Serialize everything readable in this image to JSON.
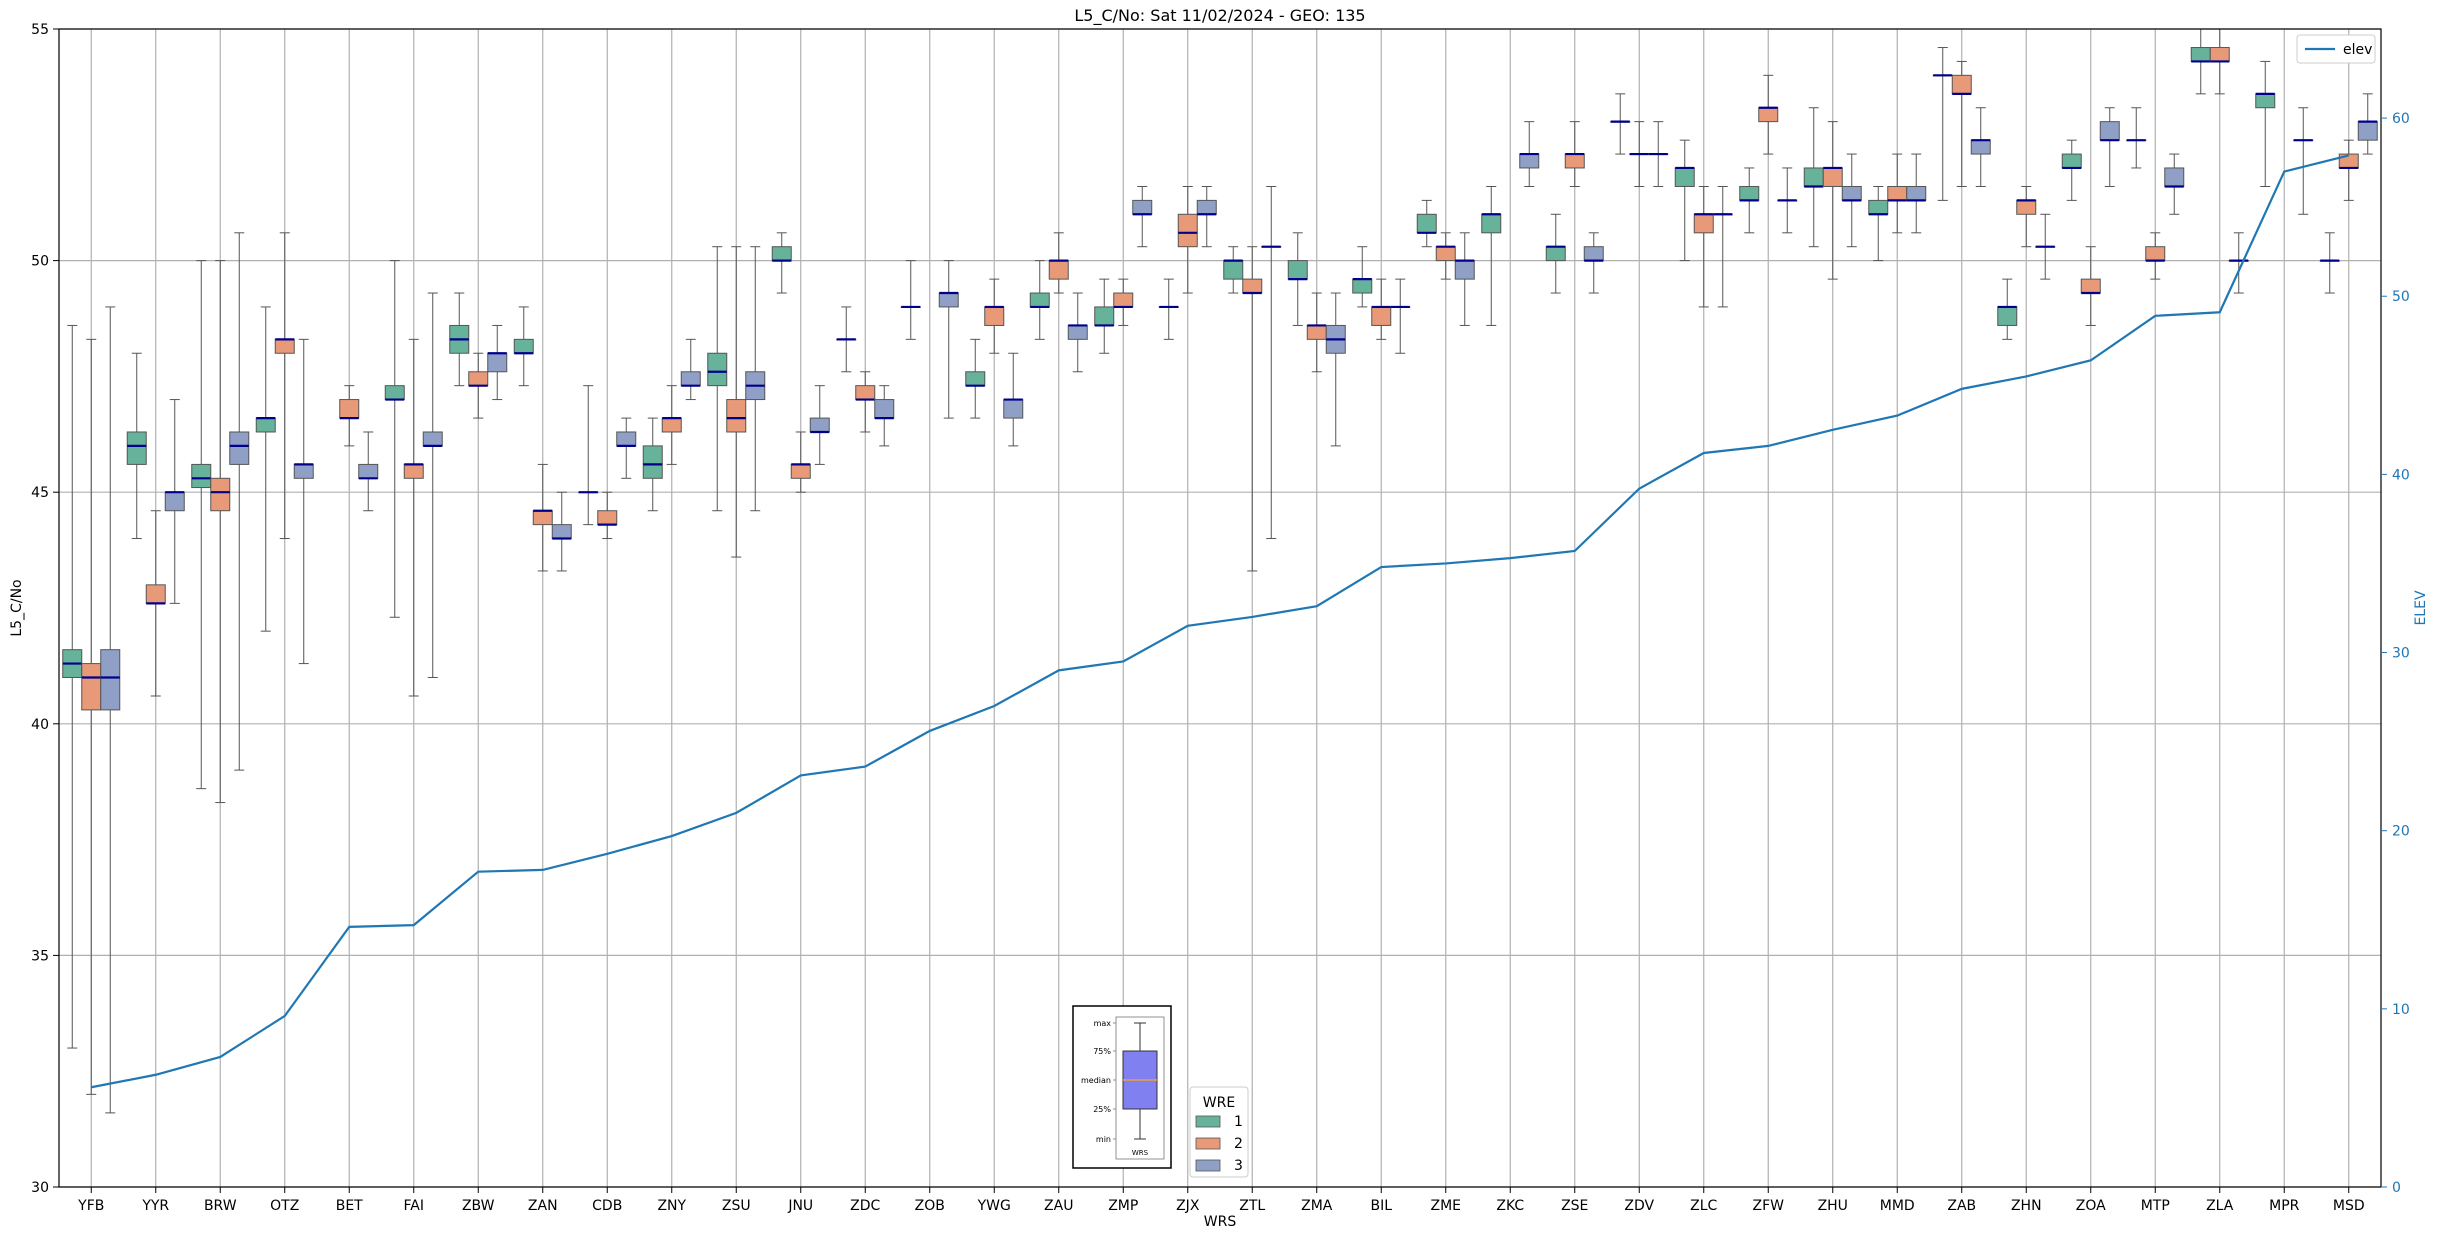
{
  "chart_data": {
    "type": "box",
    "title": "L5_C/No: Sat 11/02/2024 - GEO: 135",
    "xlabel": "WRS",
    "ylabel": "L5_C/No",
    "y2label": "ELEV",
    "ylim": [
      30,
      55
    ],
    "y2lim": [
      0,
      65
    ],
    "yticks": [
      30,
      35,
      40,
      45,
      50,
      55
    ],
    "y2ticks": [
      0,
      10,
      20,
      30,
      40,
      50,
      60
    ],
    "grid": true,
    "categories": [
      "YFB",
      "YYR",
      "BRW",
      "OTZ",
      "BET",
      "FAI",
      "ZBW",
      "ZAN",
      "CDB",
      "ZNY",
      "ZSU",
      "JNU",
      "ZDC",
      "ZOB",
      "YWG",
      "ZAU",
      "ZMP",
      "ZJX",
      "ZTL",
      "ZMA",
      "BIL",
      "ZME",
      "ZKC",
      "ZSE",
      "ZDV",
      "ZLC",
      "ZFW",
      "ZHU",
      "MMD",
      "ZAB",
      "ZHN",
      "ZOA",
      "MTP",
      "ZLA",
      "MPR",
      "MSD"
    ],
    "series": [
      {
        "name": "1",
        "color": "#66b29b",
        "boxes": [
          {
            "min": 33.0,
            "q1": 41.0,
            "med": 41.3,
            "q3": 41.6,
            "max": 48.6
          },
          {
            "min": 44.0,
            "q1": 45.6,
            "med": 46.0,
            "q3": 46.3,
            "max": 48.0
          },
          {
            "min": 38.6,
            "q1": 45.1,
            "med": 45.3,
            "q3": 45.6,
            "max": 50.0
          },
          {
            "min": 42.0,
            "q1": 46.3,
            "med": 46.6,
            "q3": 46.6,
            "max": 49.0
          },
          null,
          {
            "min": 42.3,
            "q1": 47.0,
            "med": 47.0,
            "q3": 47.3,
            "max": 50.0
          },
          {
            "min": 47.3,
            "q1": 48.0,
            "med": 48.3,
            "q3": 48.6,
            "max": 49.3
          },
          {
            "min": 47.3,
            "q1": 48.0,
            "med": 48.0,
            "q3": 48.3,
            "max": 49.0
          },
          {
            "min": 44.3,
            "q1": 45.0,
            "med": 45.0,
            "q3": 45.0,
            "max": 47.3
          },
          {
            "min": 44.6,
            "q1": 45.3,
            "med": 45.6,
            "q3": 46.0,
            "max": 46.6
          },
          {
            "min": 44.6,
            "q1": 47.3,
            "med": 47.6,
            "q3": 48.0,
            "max": 50.3
          },
          {
            "min": 49.3,
            "q1": 50.0,
            "med": 50.0,
            "q3": 50.3,
            "max": 50.6
          },
          {
            "min": 47.6,
            "q1": 48.3,
            "med": 48.3,
            "q3": 48.3,
            "max": 49.0
          },
          {
            "min": 48.3,
            "q1": 49.0,
            "med": 49.0,
            "q3": 49.0,
            "max": 50.0
          },
          {
            "min": 46.6,
            "q1": 47.3,
            "med": 47.3,
            "q3": 47.6,
            "max": 48.3
          },
          {
            "min": 48.3,
            "q1": 49.0,
            "med": 49.0,
            "q3": 49.3,
            "max": 50.0
          },
          {
            "min": 48.0,
            "q1": 48.6,
            "med": 48.6,
            "q3": 49.0,
            "max": 49.6
          },
          {
            "min": 48.3,
            "q1": 49.0,
            "med": 49.0,
            "q3": 49.0,
            "max": 49.6
          },
          {
            "min": 49.3,
            "q1": 49.6,
            "med": 50.0,
            "q3": 50.0,
            "max": 50.3
          },
          {
            "min": 48.6,
            "q1": 49.6,
            "med": 49.6,
            "q3": 50.0,
            "max": 50.6
          },
          {
            "min": 49.0,
            "q1": 49.3,
            "med": 49.6,
            "q3": 49.6,
            "max": 50.3
          },
          {
            "min": 50.3,
            "q1": 50.6,
            "med": 50.6,
            "q3": 51.0,
            "max": 51.3
          },
          {
            "min": 48.6,
            "q1": 50.6,
            "med": 51.0,
            "q3": 51.0,
            "max": 51.6
          },
          {
            "min": 49.3,
            "q1": 50.0,
            "med": 50.3,
            "q3": 50.3,
            "max": 51.0
          },
          {
            "min": 52.3,
            "q1": 53.0,
            "med": 53.0,
            "q3": 53.0,
            "max": 53.6
          },
          {
            "min": 50.0,
            "q1": 51.6,
            "med": 52.0,
            "q3": 52.0,
            "max": 52.6
          },
          {
            "min": 50.6,
            "q1": 51.3,
            "med": 51.3,
            "q3": 51.6,
            "max": 52.0
          },
          {
            "min": 50.3,
            "q1": 51.6,
            "med": 51.6,
            "q3": 52.0,
            "max": 53.3
          },
          {
            "min": 50.0,
            "q1": 51.0,
            "med": 51.0,
            "q3": 51.3,
            "max": 51.6
          },
          {
            "min": 51.3,
            "q1": 54.0,
            "med": 54.0,
            "q3": 54.0,
            "max": 54.6
          },
          {
            "min": 48.3,
            "q1": 48.6,
            "med": 49.0,
            "q3": 49.0,
            "max": 49.6
          },
          {
            "min": 51.3,
            "q1": 52.0,
            "med": 52.0,
            "q3": 52.3,
            "max": 52.6
          },
          {
            "min": 52.0,
            "q1": 52.6,
            "med": 52.6,
            "q3": 52.6,
            "max": 53.3
          },
          {
            "min": 53.6,
            "q1": 54.3,
            "med": 54.3,
            "q3": 54.6,
            "max": 55.0
          },
          {
            "min": 51.6,
            "q1": 53.3,
            "med": 53.6,
            "q3": 53.6,
            "max": 54.3
          },
          {
            "min": 49.3,
            "q1": 50.0,
            "med": 50.0,
            "q3": 50.0,
            "max": 50.6
          }
        ]
      },
      {
        "name": "2",
        "color": "#e89a78",
        "boxes": [
          {
            "min": 32.0,
            "q1": 40.3,
            "med": 41.0,
            "q3": 41.3,
            "max": 48.3
          },
          {
            "min": 40.6,
            "q1": 42.6,
            "med": 42.6,
            "q3": 43.0,
            "max": 44.6
          },
          {
            "min": 38.3,
            "q1": 44.6,
            "med": 45.0,
            "q3": 45.3,
            "max": 50.0
          },
          {
            "min": 44.0,
            "q1": 48.0,
            "med": 48.3,
            "q3": 48.3,
            "max": 50.6
          },
          {
            "min": 46.0,
            "q1": 46.6,
            "med": 46.6,
            "q3": 47.0,
            "max": 47.3
          },
          {
            "min": 40.6,
            "q1": 45.3,
            "med": 45.6,
            "q3": 45.6,
            "max": 48.3
          },
          {
            "min": 46.6,
            "q1": 47.3,
            "med": 47.3,
            "q3": 47.6,
            "max": 48.0
          },
          {
            "min": 43.3,
            "q1": 44.3,
            "med": 44.6,
            "q3": 44.6,
            "max": 45.6
          },
          {
            "min": 44.0,
            "q1": 44.3,
            "med": 44.3,
            "q3": 44.6,
            "max": 45.0
          },
          {
            "min": 45.6,
            "q1": 46.3,
            "med": 46.6,
            "q3": 46.6,
            "max": 47.3
          },
          {
            "min": 43.6,
            "q1": 46.3,
            "med": 46.6,
            "q3": 47.0,
            "max": 50.3
          },
          {
            "min": 45.0,
            "q1": 45.3,
            "med": 45.6,
            "q3": 45.6,
            "max": 46.3
          },
          {
            "min": 46.3,
            "q1": 47.0,
            "med": 47.0,
            "q3": 47.3,
            "max": 47.6
          },
          null,
          {
            "min": 48.0,
            "q1": 48.6,
            "med": 49.0,
            "q3": 49.0,
            "max": 49.6
          },
          {
            "min": 49.3,
            "q1": 49.6,
            "med": 50.0,
            "q3": 50.0,
            "max": 50.6
          },
          {
            "min": 48.6,
            "q1": 49.0,
            "med": 49.0,
            "q3": 49.3,
            "max": 49.6
          },
          {
            "min": 49.3,
            "q1": 50.3,
            "med": 50.6,
            "q3": 51.0,
            "max": 51.6
          },
          {
            "min": 43.3,
            "q1": 49.3,
            "med": 49.3,
            "q3": 49.6,
            "max": 50.3
          },
          {
            "min": 47.6,
            "q1": 48.3,
            "med": 48.6,
            "q3": 48.6,
            "max": 49.3
          },
          {
            "min": 48.3,
            "q1": 48.6,
            "med": 49.0,
            "q3": 49.0,
            "max": 49.6
          },
          {
            "min": 49.6,
            "q1": 50.0,
            "med": 50.3,
            "q3": 50.3,
            "max": 50.6
          },
          null,
          {
            "min": 51.6,
            "q1": 52.0,
            "med": 52.3,
            "q3": 52.3,
            "max": 53.0
          },
          {
            "min": 51.6,
            "q1": 52.3,
            "med": 52.3,
            "q3": 52.3,
            "max": 53.0
          },
          {
            "min": 49.0,
            "q1": 50.6,
            "med": 51.0,
            "q3": 51.0,
            "max": 51.6
          },
          {
            "min": 52.3,
            "q1": 53.0,
            "med": 53.3,
            "q3": 53.3,
            "max": 54.0
          },
          {
            "min": 49.6,
            "q1": 51.6,
            "med": 52.0,
            "q3": 52.0,
            "max": 53.0
          },
          {
            "min": 50.6,
            "q1": 51.3,
            "med": 51.3,
            "q3": 51.6,
            "max": 52.3
          },
          {
            "min": 51.6,
            "q1": 53.6,
            "med": 53.6,
            "q3": 54.0,
            "max": 54.3
          },
          {
            "min": 50.3,
            "q1": 51.0,
            "med": 51.3,
            "q3": 51.3,
            "max": 51.6
          },
          {
            "min": 48.6,
            "q1": 49.3,
            "med": 49.3,
            "q3": 49.6,
            "max": 50.3
          },
          {
            "min": 49.6,
            "q1": 50.0,
            "med": 50.0,
            "q3": 50.3,
            "max": 50.6
          },
          {
            "min": 53.6,
            "q1": 54.3,
            "med": 54.3,
            "q3": 54.6,
            "max": 55.0
          },
          null,
          {
            "min": 51.3,
            "q1": 52.0,
            "med": 52.0,
            "q3": 52.3,
            "max": 52.6
          }
        ]
      },
      {
        "name": "3",
        "color": "#8f9fc6",
        "boxes": [
          {
            "min": 31.6,
            "q1": 40.3,
            "med": 41.0,
            "q3": 41.6,
            "max": 49.0
          },
          {
            "min": 42.6,
            "q1": 44.6,
            "med": 45.0,
            "q3": 45.0,
            "max": 47.0
          },
          {
            "min": 39.0,
            "q1": 45.6,
            "med": 46.0,
            "q3": 46.3,
            "max": 50.6
          },
          {
            "min": 41.3,
            "q1": 45.3,
            "med": 45.6,
            "q3": 45.6,
            "max": 48.3
          },
          {
            "min": 44.6,
            "q1": 45.3,
            "med": 45.3,
            "q3": 45.6,
            "max": 46.3
          },
          {
            "min": 41.0,
            "q1": 46.0,
            "med": 46.0,
            "q3": 46.3,
            "max": 49.3
          },
          {
            "min": 47.0,
            "q1": 47.6,
            "med": 48.0,
            "q3": 48.0,
            "max": 48.6
          },
          {
            "min": 43.3,
            "q1": 44.0,
            "med": 44.0,
            "q3": 44.3,
            "max": 45.0
          },
          {
            "min": 45.3,
            "q1": 46.0,
            "med": 46.0,
            "q3": 46.3,
            "max": 46.6
          },
          {
            "min": 47.0,
            "q1": 47.3,
            "med": 47.3,
            "q3": 47.6,
            "max": 48.3
          },
          {
            "min": 44.6,
            "q1": 47.0,
            "med": 47.3,
            "q3": 47.6,
            "max": 50.3
          },
          {
            "min": 45.6,
            "q1": 46.3,
            "med": 46.3,
            "q3": 46.6,
            "max": 47.3
          },
          {
            "min": 46.0,
            "q1": 46.6,
            "med": 46.6,
            "q3": 47.0,
            "max": 47.3
          },
          {
            "min": 46.6,
            "q1": 49.0,
            "med": 49.3,
            "q3": 49.3,
            "max": 50.0
          },
          {
            "min": 46.0,
            "q1": 46.6,
            "med": 47.0,
            "q3": 47.0,
            "max": 48.0
          },
          {
            "min": 47.6,
            "q1": 48.3,
            "med": 48.6,
            "q3": 48.6,
            "max": 49.3
          },
          {
            "min": 50.3,
            "q1": 51.0,
            "med": 51.0,
            "q3": 51.3,
            "max": 51.6
          },
          {
            "min": 50.3,
            "q1": 51.0,
            "med": 51.0,
            "q3": 51.3,
            "max": 51.6
          },
          {
            "min": 44.0,
            "q1": 50.3,
            "med": 50.3,
            "q3": 50.3,
            "max": 51.6
          },
          {
            "min": 46.0,
            "q1": 48.0,
            "med": 48.3,
            "q3": 48.6,
            "max": 49.3
          },
          {
            "min": 48.0,
            "q1": 49.0,
            "med": 49.0,
            "q3": 49.0,
            "max": 49.6
          },
          {
            "min": 48.6,
            "q1": 49.6,
            "med": 50.0,
            "q3": 50.0,
            "max": 50.6
          },
          {
            "min": 51.6,
            "q1": 52.0,
            "med": 52.3,
            "q3": 52.3,
            "max": 53.0
          },
          {
            "min": 49.3,
            "q1": 50.0,
            "med": 50.0,
            "q3": 50.3,
            "max": 50.6
          },
          {
            "min": 51.6,
            "q1": 52.3,
            "med": 52.3,
            "q3": 52.3,
            "max": 53.0
          },
          {
            "min": 49.0,
            "q1": 51.0,
            "med": 51.0,
            "q3": 51.0,
            "max": 51.6
          },
          {
            "min": 50.6,
            "q1": 51.3,
            "med": 51.3,
            "q3": 51.3,
            "max": 52.0
          },
          {
            "min": 50.3,
            "q1": 51.3,
            "med": 51.3,
            "q3": 51.6,
            "max": 52.3
          },
          {
            "min": 50.6,
            "q1": 51.3,
            "med": 51.3,
            "q3": 51.6,
            "max": 52.3
          },
          {
            "min": 51.6,
            "q1": 52.3,
            "med": 52.6,
            "q3": 52.6,
            "max": 53.3
          },
          {
            "min": 49.6,
            "q1": 50.3,
            "med": 50.3,
            "q3": 50.3,
            "max": 51.0
          },
          {
            "min": 51.6,
            "q1": 52.6,
            "med": 52.6,
            "q3": 53.0,
            "max": 53.3
          },
          {
            "min": 51.0,
            "q1": 51.6,
            "med": 51.6,
            "q3": 52.0,
            "max": 52.3
          },
          {
            "min": 49.3,
            "q1": 50.0,
            "med": 50.0,
            "q3": 50.0,
            "max": 50.6
          },
          {
            "min": 51.0,
            "q1": 52.6,
            "med": 52.6,
            "q3": 52.6,
            "max": 53.3
          },
          {
            "min": 52.3,
            "q1": 52.6,
            "med": 53.0,
            "q3": 53.0,
            "max": 53.6
          }
        ]
      }
    ],
    "line": {
      "name": "elev",
      "color": "#1f77b4",
      "values": [
        5.6,
        6.3,
        7.3,
        9.6,
        14.6,
        14.7,
        17.7,
        17.8,
        18.7,
        19.7,
        21.0,
        23.1,
        23.6,
        25.6,
        27.0,
        29.0,
        29.5,
        31.5,
        32.0,
        32.6,
        34.8,
        35.0,
        35.3,
        35.7,
        39.2,
        41.2,
        41.6,
        42.5,
        43.3,
        44.8,
        45.5,
        46.4,
        48.9,
        49.1,
        57.0,
        57.9
      ]
    },
    "legend_line": {
      "position": "top-right",
      "label": "elev"
    },
    "legend_wre": {
      "position": "bottom-center",
      "title": "WRE",
      "labels": [
        "1",
        "2",
        "3"
      ]
    },
    "box_key": {
      "labels": [
        "max",
        "75%",
        "median",
        "25%",
        "min"
      ],
      "x_label": "WRS"
    }
  }
}
